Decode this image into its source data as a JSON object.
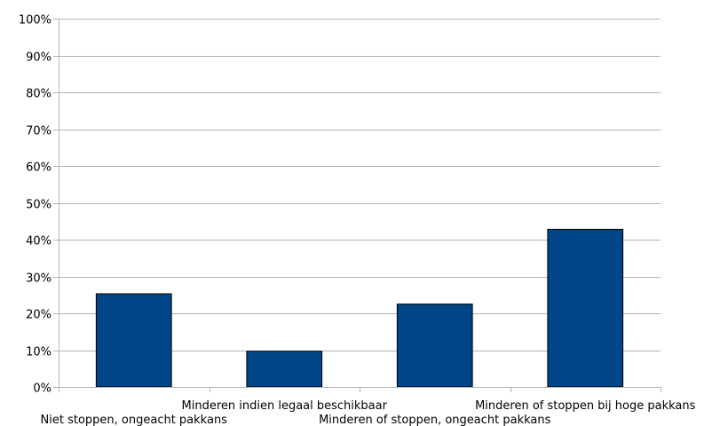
{
  "chart_data": {
    "type": "bar",
    "title": "",
    "xlabel": "",
    "ylabel": "",
    "categories": [
      "Niet stoppen, ongeacht pakkans",
      "Minderen indien legaal beschikbaar",
      "Minderen of stoppen, ongeacht pakkans",
      "Minderen of stoppen bij hoge pakkans"
    ],
    "values": [
      25.3,
      9.7,
      22.5,
      42.8
    ],
    "ylim": [
      0,
      100
    ],
    "ytick_labels": [
      "0%",
      "10%",
      "20%",
      "30%",
      "40%",
      "50%",
      "60%",
      "70%",
      "80%",
      "90%",
      "100%"
    ],
    "grid": true,
    "legend": "none",
    "colors": {
      "bar": "#004586",
      "bar_edge": "#000000",
      "grid": "#b3b3b3",
      "axis": "#b3b3b3"
    }
  }
}
